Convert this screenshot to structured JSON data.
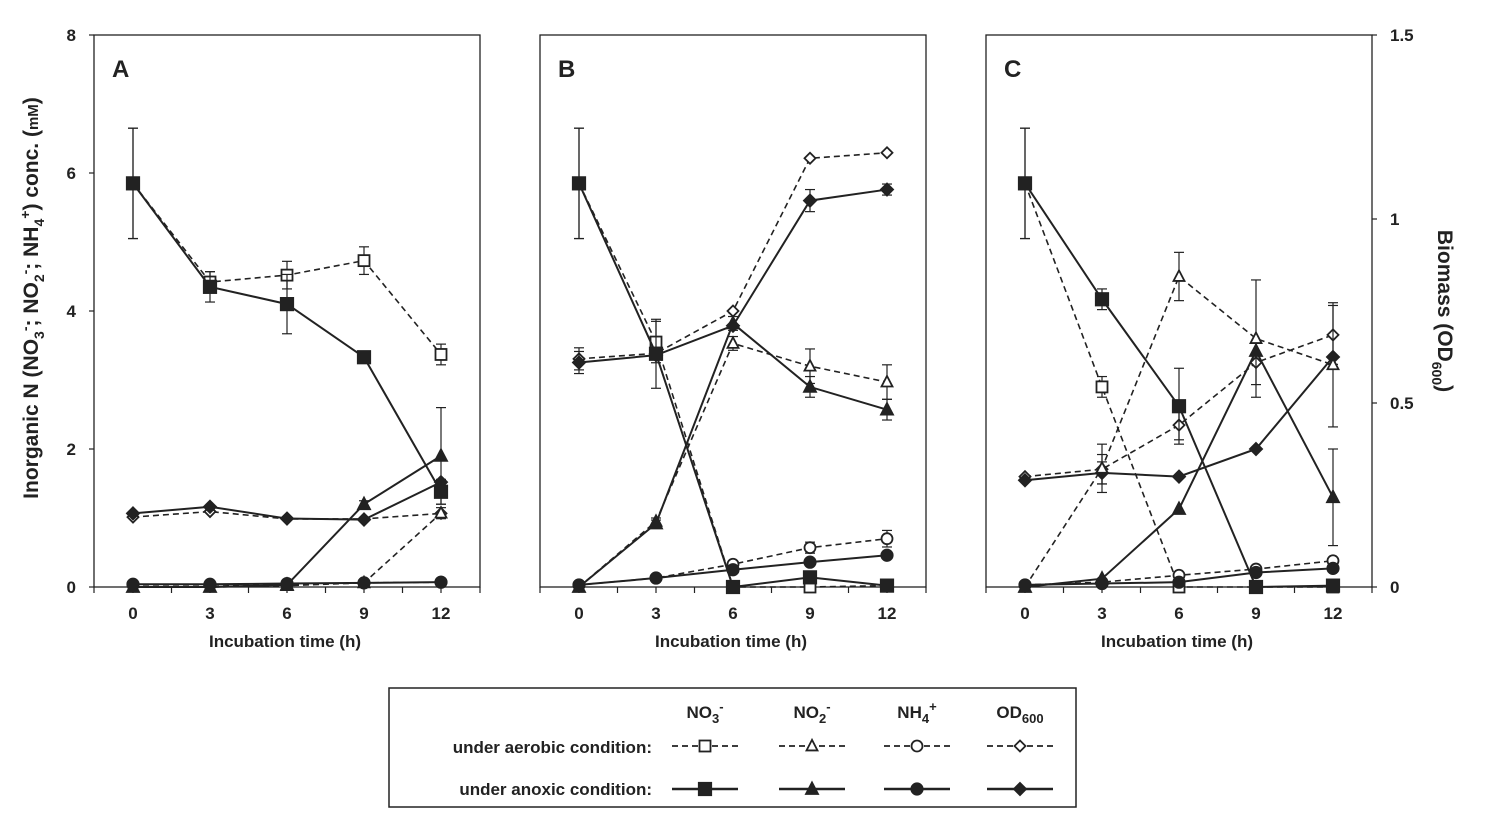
{
  "figure": {
    "left_axis_label": {
      "prefix": "Inorganic N (NO",
      "s1": "3",
      "sup1": "-",
      "mid1": "; NO",
      "s2": "2",
      "sup2": "-",
      "mid2": "; NH",
      "s3": "4",
      "sup3": "+",
      "suffix": ") conc. (",
      "unit": "mM",
      "close": ")"
    },
    "right_axis_label": {
      "prefix": "Biomass (OD",
      "sub": "600",
      "suffix": ")"
    },
    "x_label": "Incubation time (h)",
    "x_ticks": [
      "0",
      "3",
      "6",
      "9",
      "12"
    ],
    "y_left_ticks": [
      "0",
      "2",
      "4",
      "6",
      "8"
    ],
    "y_right_ticks": [
      "0",
      "0.5",
      "1",
      "1.5"
    ]
  },
  "legend": {
    "headers": {
      "no3": {
        "base": "NO",
        "sub": "3",
        "sup": "-"
      },
      "no2": {
        "base": "NO",
        "sub": "2",
        "sup": "-"
      },
      "nh4": {
        "base": "NH",
        "sub": "4",
        "sup": "+"
      },
      "od": {
        "base": "OD",
        "sub": "600"
      }
    },
    "aerobic_label": "under aerobic condition:",
    "anoxic_label": "under anoxic condition:"
  },
  "chart_data": [
    {
      "type": "line",
      "panel": "A",
      "x": [
        0,
        3,
        6,
        9,
        12
      ],
      "xlabel": "Incubation time (h)",
      "ylabel": "Inorganic N (NO3-; NO2-; NH4+) conc. (mM)",
      "ylim": [
        0,
        8
      ],
      "y2label": "Biomass (OD600)",
      "y2lim": [
        0,
        1.5
      ],
      "series": [
        {
          "name": "NO3- aerobic",
          "marker": "square-open",
          "style": "dashed",
          "axis": "left",
          "values": [
            5.85,
            4.42,
            4.52,
            4.73,
            3.37
          ],
          "err": [
            0.8,
            0.15,
            0.2,
            0.2,
            0.15
          ]
        },
        {
          "name": "NO3- anoxic",
          "marker": "square-filled",
          "style": "solid",
          "axis": "left",
          "values": [
            5.85,
            4.35,
            4.1,
            3.33,
            1.38
          ],
          "err": [
            0.8,
            0.22,
            0.43,
            0.05,
            0.18
          ]
        },
        {
          "name": "NO2- aerobic",
          "marker": "triangle-open",
          "style": "dashed",
          "axis": "left",
          "values": [
            0.0,
            0.0,
            0.02,
            0.06,
            1.07
          ],
          "err": [
            0,
            0,
            0,
            0,
            0.08
          ]
        },
        {
          "name": "NO2- anoxic",
          "marker": "triangle-filled",
          "style": "solid",
          "axis": "left",
          "values": [
            0.0,
            0.0,
            0.03,
            1.2,
            1.9
          ],
          "err": [
            0,
            0,
            0,
            0.05,
            0.7
          ]
        },
        {
          "name": "NH4+ aerobic",
          "marker": "circle-open",
          "style": "dashed",
          "axis": "left",
          "values": [
            0.03,
            0.03,
            0.04,
            0.06,
            0.07
          ],
          "err": [
            0,
            0,
            0,
            0,
            0
          ]
        },
        {
          "name": "NH4+ anoxic",
          "marker": "circle-filled",
          "style": "solid",
          "axis": "left",
          "values": [
            0.04,
            0.04,
            0.05,
            0.06,
            0.07
          ],
          "err": [
            0,
            0,
            0,
            0,
            0
          ]
        },
        {
          "name": "OD600 aerobic",
          "marker": "diamond-open",
          "style": "dashed",
          "axis": "right",
          "values": [
            0.19,
            0.205,
            0.185,
            0.185,
            0.2
          ],
          "err": [
            0,
            0,
            0,
            0,
            0
          ]
        },
        {
          "name": "OD600 anoxic",
          "marker": "diamond-filled",
          "style": "solid",
          "axis": "right",
          "values": [
            0.2,
            0.218,
            0.186,
            0.183,
            0.285
          ],
          "err": [
            0,
            0,
            0,
            0,
            0
          ]
        }
      ]
    },
    {
      "type": "line",
      "panel": "B",
      "x": [
        0,
        3,
        6,
        9,
        12
      ],
      "xlabel": "Incubation time (h)",
      "ylim": [
        0,
        8
      ],
      "y2lim": [
        0,
        1.5
      ],
      "series": [
        {
          "name": "NO3- aerobic",
          "marker": "square-open",
          "style": "dashed",
          "axis": "left",
          "values": [
            5.85,
            3.55,
            0.0,
            0.0,
            0.02
          ],
          "err": [
            0.8,
            0.3,
            0,
            0,
            0
          ]
        },
        {
          "name": "NO3- anoxic",
          "marker": "square-filled",
          "style": "solid",
          "axis": "left",
          "values": [
            5.85,
            3.38,
            0.0,
            0.14,
            0.02
          ],
          "err": [
            0.8,
            0.5,
            0,
            0.08,
            0
          ]
        },
        {
          "name": "NO2- aerobic",
          "marker": "triangle-open",
          "style": "dashed",
          "axis": "left",
          "values": [
            0.0,
            0.95,
            3.53,
            3.2,
            2.97
          ],
          "err": [
            0,
            0.05,
            0.1,
            0.25,
            0.25
          ]
        },
        {
          "name": "NO2- anoxic",
          "marker": "triangle-filled",
          "style": "solid",
          "axis": "left",
          "values": [
            0.0,
            0.92,
            3.82,
            2.9,
            2.57
          ],
          "err": [
            0,
            0.05,
            0.1,
            0.15,
            0.15
          ]
        },
        {
          "name": "NH4+ aerobic",
          "marker": "circle-open",
          "style": "dashed",
          "axis": "left",
          "values": [
            0.03,
            0.13,
            0.33,
            0.57,
            0.7
          ],
          "err": [
            0,
            0,
            0.05,
            0.08,
            0.12
          ]
        },
        {
          "name": "NH4+ anoxic",
          "marker": "circle-filled",
          "style": "solid",
          "axis": "left",
          "values": [
            0.03,
            0.13,
            0.25,
            0.36,
            0.46
          ],
          "err": [
            0,
            0,
            0,
            0,
            0
          ]
        },
        {
          "name": "OD600 aerobic",
          "marker": "diamond-open",
          "style": "dashed",
          "axis": "right",
          "values": [
            0.62,
            0.635,
            0.75,
            1.165,
            1.18
          ],
          "err": [
            0.03,
            0,
            0,
            0,
            0
          ]
        },
        {
          "name": "OD600 anoxic",
          "marker": "diamond-filled",
          "style": "solid",
          "axis": "right",
          "values": [
            0.61,
            0.63,
            0.71,
            1.05,
            1.08
          ],
          "err": [
            0.03,
            0,
            0,
            0.03,
            0.015
          ]
        }
      ]
    },
    {
      "type": "line",
      "panel": "C",
      "x": [
        0,
        3,
        6,
        9,
        12
      ],
      "xlabel": "Incubation time (h)",
      "ylim": [
        0,
        8
      ],
      "y2label": "Biomass (OD600)",
      "y2lim": [
        0,
        1.5
      ],
      "series": [
        {
          "name": "NO3- aerobic",
          "marker": "square-open",
          "style": "dashed",
          "axis": "left",
          "values": [
            5.85,
            2.9,
            0.0,
            0.0,
            0.0
          ],
          "err": [
            0.8,
            0.15,
            0,
            0,
            0
          ]
        },
        {
          "name": "NO3- anoxic",
          "marker": "square-filled",
          "style": "solid",
          "axis": "left",
          "values": [
            5.85,
            4.17,
            2.62,
            0.0,
            0.02
          ],
          "err": [
            0.8,
            0.15,
            0.55,
            0,
            0
          ]
        },
        {
          "name": "NO2- aerobic",
          "marker": "triangle-open",
          "style": "dashed",
          "axis": "left",
          "values": [
            0.0,
            1.72,
            4.5,
            3.6,
            3.22
          ],
          "err": [
            0,
            0.35,
            0.35,
            0.85,
            0.9
          ]
        },
        {
          "name": "NO2- anoxic",
          "marker": "triangle-filled",
          "style": "solid",
          "axis": "left",
          "values": [
            0.0,
            0.12,
            1.13,
            3.42,
            1.3
          ],
          "err": [
            0,
            0,
            0,
            0,
            0.7
          ]
        },
        {
          "name": "NH4+ aerobic",
          "marker": "circle-open",
          "style": "dashed",
          "axis": "left",
          "values": [
            0.03,
            0.07,
            0.17,
            0.26,
            0.38
          ],
          "err": [
            0,
            0,
            0,
            0,
            0
          ]
        },
        {
          "name": "NH4+ anoxic",
          "marker": "circle-filled",
          "style": "solid",
          "axis": "left",
          "values": [
            0.03,
            0.05,
            0.07,
            0.21,
            0.27
          ],
          "err": [
            0,
            0,
            0,
            0,
            0
          ]
        },
        {
          "name": "OD600 aerobic",
          "marker": "diamond-open",
          "style": "dashed",
          "axis": "right",
          "values": [
            0.3,
            0.32,
            0.44,
            0.61,
            0.685
          ],
          "err": [
            0,
            0.04,
            0.04,
            0.06,
            0.08
          ]
        },
        {
          "name": "OD600 anoxic",
          "marker": "diamond-filled",
          "style": "solid",
          "axis": "right",
          "values": [
            0.29,
            0.31,
            0.3,
            0.375,
            0.625
          ],
          "err": [
            0,
            0.03,
            0,
            0,
            0
          ]
        }
      ]
    }
  ]
}
